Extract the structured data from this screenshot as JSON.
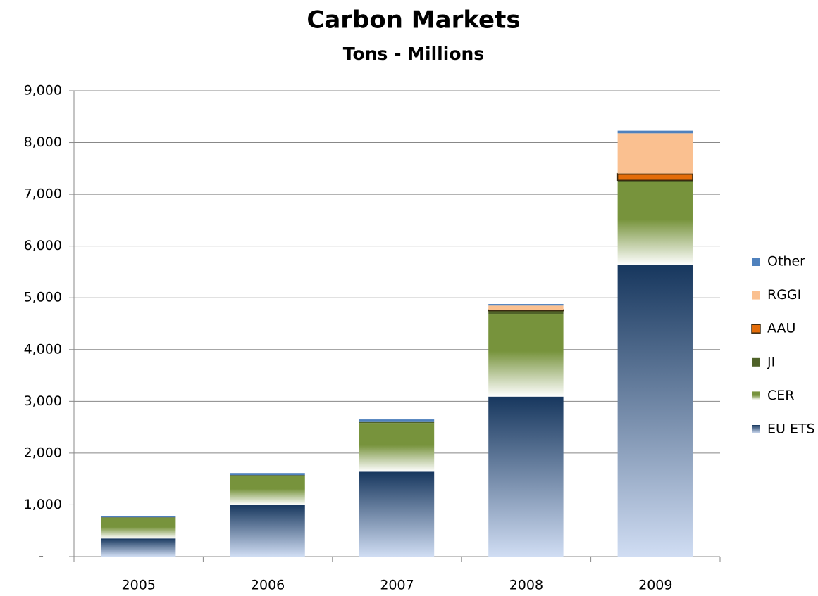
{
  "chart_data": {
    "type": "stacked_bar",
    "title": "Carbon Markets",
    "subtitle": "Tons - Millions",
    "categories": [
      "2005",
      "2006",
      "2007",
      "2008",
      "2009"
    ],
    "series": [
      {
        "name": "EU ETS",
        "color": "#17375e",
        "values": [
          350,
          1000,
          1640,
          3090,
          5630
        ]
      },
      {
        "name": "CER",
        "color": "#77933c",
        "values": [
          400,
          560,
          940,
          1600,
          1610
        ]
      },
      {
        "name": "JI",
        "color": "#4f6228",
        "values": [
          10,
          15,
          20,
          60,
          30
        ]
      },
      {
        "name": "AAU",
        "color": "#e36c09",
        "values": [
          0,
          0,
          0,
          20,
          130
        ]
      },
      {
        "name": "RGGI",
        "color": "#fac090",
        "values": [
          0,
          0,
          0,
          80,
          780
        ]
      },
      {
        "name": "Other",
        "color": "#4f81bd",
        "values": [
          20,
          40,
          50,
          30,
          50
        ]
      }
    ],
    "ylim": [
      0,
      9000
    ],
    "yticks": [
      {
        "value": 0,
        "label": "-"
      },
      {
        "value": 1000,
        "label": "1,000"
      },
      {
        "value": 2000,
        "label": "2,000"
      },
      {
        "value": 3000,
        "label": "3,000"
      },
      {
        "value": 4000,
        "label": "4,000"
      },
      {
        "value": 5000,
        "label": "5,000"
      },
      {
        "value": 6000,
        "label": "6,000"
      },
      {
        "value": 7000,
        "label": "7,000"
      },
      {
        "value": 8000,
        "label": "8,000"
      },
      {
        "value": 9000,
        "label": "9,000"
      }
    ],
    "grid": true,
    "legend": "right"
  }
}
